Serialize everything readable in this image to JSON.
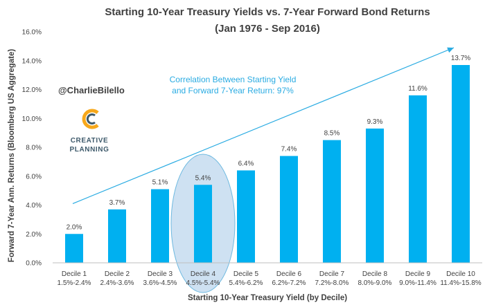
{
  "chart_data": {
    "type": "bar",
    "title": "Starting 10-Year Treasury Yields vs. 7-Year Forward Bond Returns",
    "subtitle": "(Jan 1976 - Sep 2016)",
    "xlabel": "Starting 10-Year Treasury Yield (by Decile)",
    "ylabel": "Forward 7-Year Ann. Returns (Bloomberg US Aggregate)",
    "ylim": [
      0,
      16
    ],
    "y_ticks": [
      "0.0%",
      "2.0%",
      "4.0%",
      "6.0%",
      "8.0%",
      "10.0%",
      "12.0%",
      "14.0%",
      "16.0%"
    ],
    "categories": [
      "Decile 1",
      "Decile 2",
      "Decile 3",
      "Decile 4",
      "Decile 5",
      "Decile 6",
      "Decile 7",
      "Decile 8",
      "Decile 9",
      "Decile 10"
    ],
    "category_ranges": [
      "1.5%-2.4%",
      "2.4%-3.6%",
      "3.6%-4.5%",
      "4.5%-5.4%",
      "5.4%-6.2%",
      "6.2%-7.2%",
      "7.2%-8.0%",
      "8.0%-9.0%",
      "9.0%-11.4%",
      "11.4%-15.8%"
    ],
    "values": [
      2.0,
      3.7,
      5.1,
      5.4,
      6.4,
      7.4,
      8.5,
      9.3,
      11.6,
      13.7
    ],
    "data_labels": [
      "2.0%",
      "3.7%",
      "5.1%",
      "5.4%",
      "6.4%",
      "7.4%",
      "8.5%",
      "9.3%",
      "11.6%",
      "13.7%"
    ],
    "highlighted_category": "Decile 4",
    "annotation": [
      "Correlation Between Starting Yield",
      "and Forward 7-Year Return: 97%"
    ],
    "trend_arrow": {
      "start": [
        "Decile 1",
        4.1
      ],
      "end": [
        "Decile 10",
        14.9
      ]
    },
    "grid": false,
    "legend": "none",
    "colors": {
      "bar": "#00B0F0",
      "annotation": "#29ABE2",
      "highlight_fill": "#BDD7EE",
      "highlight_stroke": "#6EB9E0"
    }
  },
  "watermark": {
    "handle": "@CharlieBilello",
    "logo_line1": "CREATIVE",
    "logo_line2": "PLANNING"
  }
}
